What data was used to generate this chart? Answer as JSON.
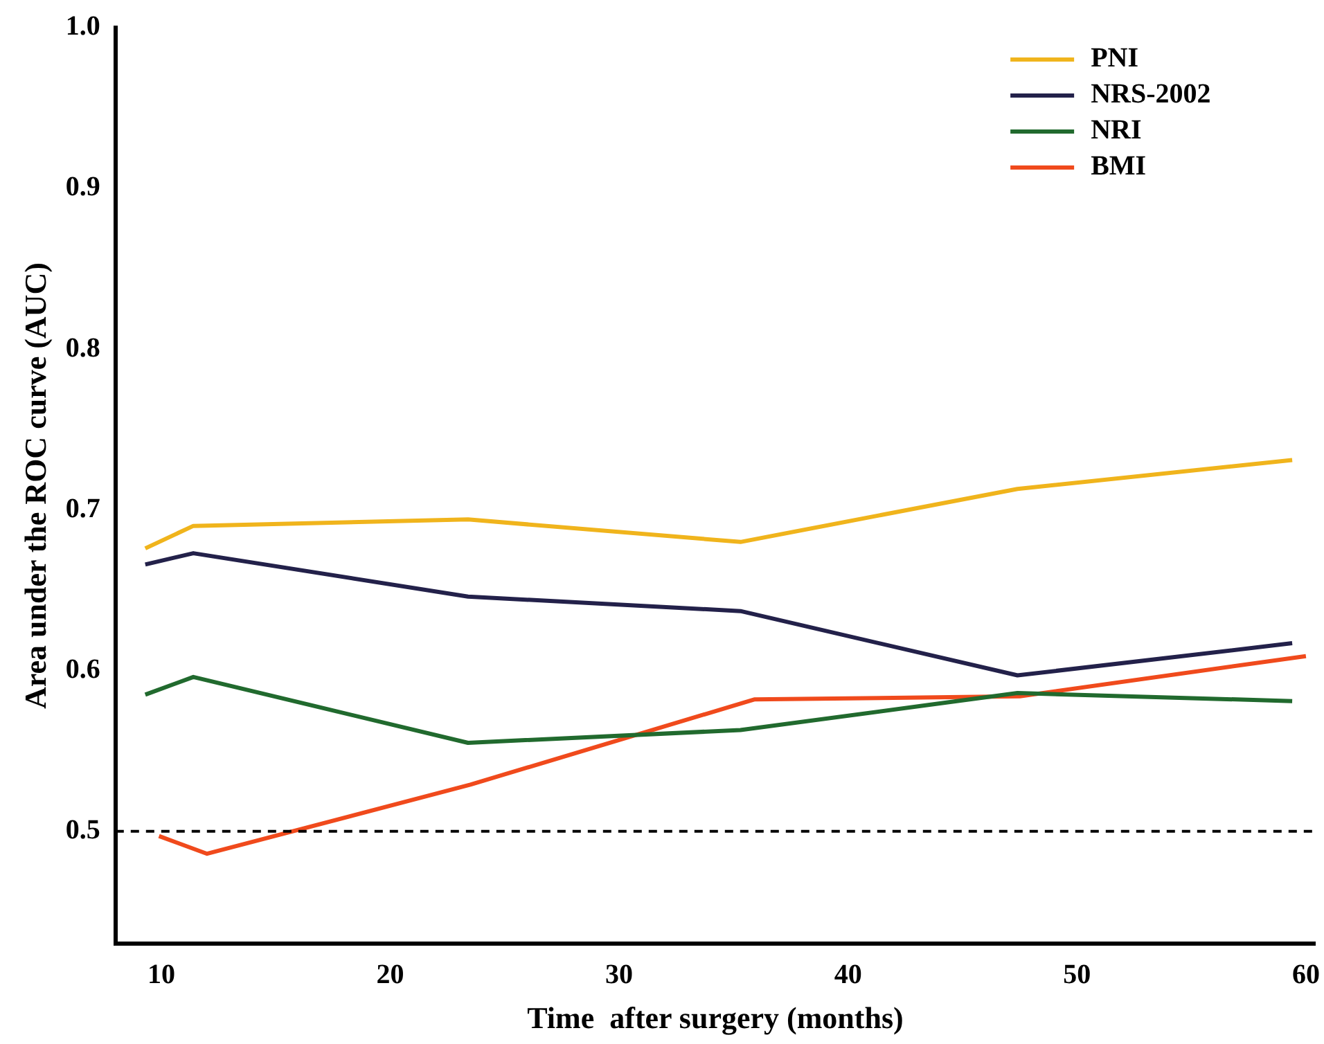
{
  "chart_data": {
    "type": "line",
    "xlabel": "Time  after surgery (months)",
    "ylabel": "Area under the ROC curve (AUC)",
    "x": [
      9.3,
      11.4,
      23.4,
      35.3,
      47.4,
      59.4
    ],
    "series": [
      {
        "name": "PNI",
        "color": "#f0b41c",
        "values": [
          0.676,
          0.69,
          0.694,
          0.68,
          0.713,
          0.731
        ]
      },
      {
        "name": "NRS-2002",
        "color": "#23214a",
        "values": [
          0.666,
          0.673,
          0.646,
          0.637,
          0.597,
          0.617
        ]
      },
      {
        "name": "NRI",
        "color": "#216a2e",
        "values": [
          0.585,
          0.596,
          0.555,
          0.563,
          0.586,
          0.581
        ]
      },
      {
        "name": "BMI",
        "color": "#f04a1c",
        "x": [
          9.9,
          12.0,
          23.5,
          35.9,
          47.5,
          60.0
        ],
        "values": [
          0.497,
          0.486,
          0.529,
          0.582,
          0.584,
          0.609
        ]
      }
    ],
    "xlim": [
      8,
      60.4
    ],
    "xticks": [
      10,
      20,
      30,
      40,
      50,
      60
    ],
    "ylim": [
      0.43,
      1.0
    ],
    "yticks": [
      0.5,
      0.6,
      0.7,
      0.8,
      0.9,
      {
        "value": 1.0,
        "label": "1.0"
      }
    ],
    "ref_lines": [
      {
        "axis": "y",
        "value": 0.5,
        "color": "#000000",
        "line_style": "dashed"
      }
    ],
    "grid": false,
    "legend": "top right",
    "marker": "none",
    "line_style": "solid"
  }
}
